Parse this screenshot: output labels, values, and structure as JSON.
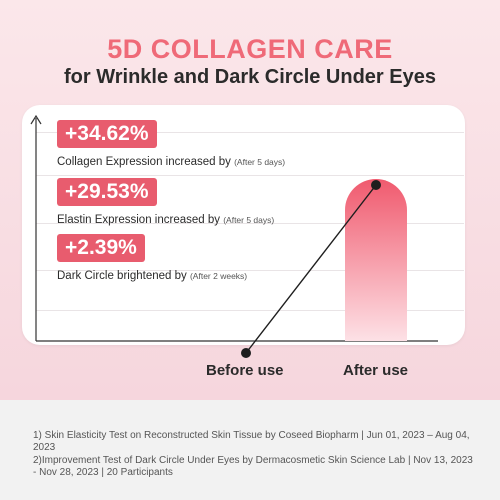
{
  "header": {
    "title": "5D COLLAGEN CARE",
    "subtitle": "for Wrinkle and Dark Circle Under Eyes"
  },
  "stats": [
    {
      "value": "+34.62%",
      "label": "Collagen Expression increased by",
      "period": "(After 5 days)"
    },
    {
      "value": "+29.53%",
      "label": "Elastin Expression increased by",
      "period": "(After 5 days)"
    },
    {
      "value": "+2.39%",
      "label": "Dark Circle brightened by",
      "period": "(After 2 weeks)"
    }
  ],
  "chart_data": {
    "type": "bar",
    "categories": [
      "Before use",
      "After use"
    ],
    "values": [
      0,
      1
    ],
    "title": "",
    "xlabel": "",
    "ylabel": ""
  },
  "footnotes": [
    "1) Skin Elasticity Test on Reconstructed Skin Tissue by Coseed Biopharm | Jun 01, 2023 – Aug 04, 2023",
    "2)Improvement Test of Dark Circle Under Eyes by Dermacosmetic Skin Science Lab | Nov 13, 2023 - Nov 28, 2023 | 20 Participants"
  ],
  "colors": {
    "accent": "#ef6a78",
    "badge": "#e85c6e",
    "bar_top": "#f05a6e",
    "bar_bottom": "#fde1e6"
  }
}
